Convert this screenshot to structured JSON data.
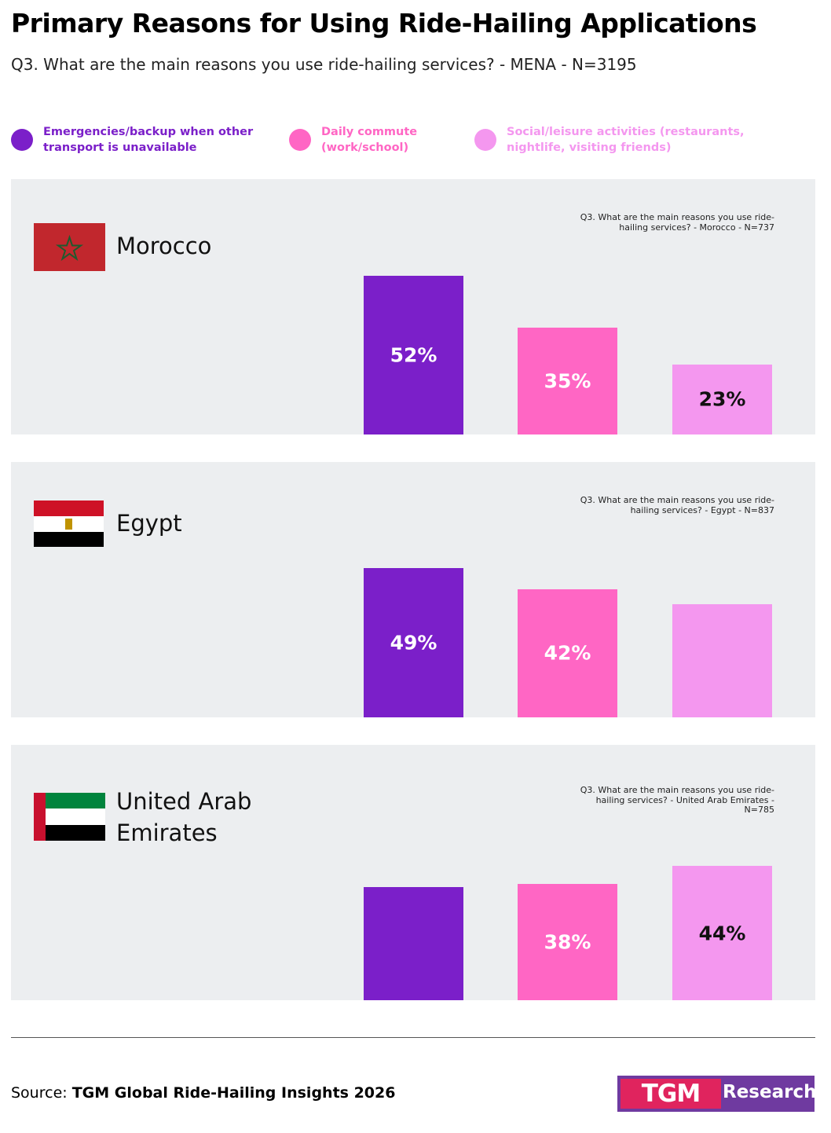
{
  "title": "Primary Reasons for Using Ride-Hailing Applications",
  "subtitle": "Q3. What are the main reasons you use ride-hailing services? - MENA - N=3195",
  "legend": [
    {
      "name": "Emergencies/backup when other transport is unavailable",
      "color": "#7b1fc9"
    },
    {
      "name": "Daily commute (work/school)",
      "color": "#ff66c4"
    },
    {
      "name": "Social/leisure activities (restaurants, nightlife, visiting friends)",
      "color": "#f497ef"
    }
  ],
  "chart_data": [
    {
      "type": "bar",
      "title": "Morocco",
      "note": "Q3. What are the main reasons you use ride-hailing services? - Morocco - N=737",
      "values": [
        52,
        35,
        23
      ],
      "value_labels": [
        "52%",
        "35%",
        "23%"
      ]
    },
    {
      "type": "bar",
      "title": "Egypt",
      "note": "Q3. What are the main reasons you use ride-hailing services? - Egypt - N=837",
      "values": [
        49,
        42,
        37
      ],
      "value_labels": [
        "49%",
        "42%",
        null
      ]
    },
    {
      "type": "bar",
      "title": "United Arab Emirates",
      "note": "Q3. What are the main reasons you use ride-hailing services? - United Arab Emirates - N=785",
      "values": [
        37,
        38,
        44
      ],
      "value_labels": [
        null,
        "38%",
        "44%"
      ]
    }
  ],
  "source": {
    "label": "Source:",
    "name": "TGM Global Ride-Hailing Insights 2026"
  },
  "logo": {
    "mark": "TGM",
    "text": "Research"
  }
}
